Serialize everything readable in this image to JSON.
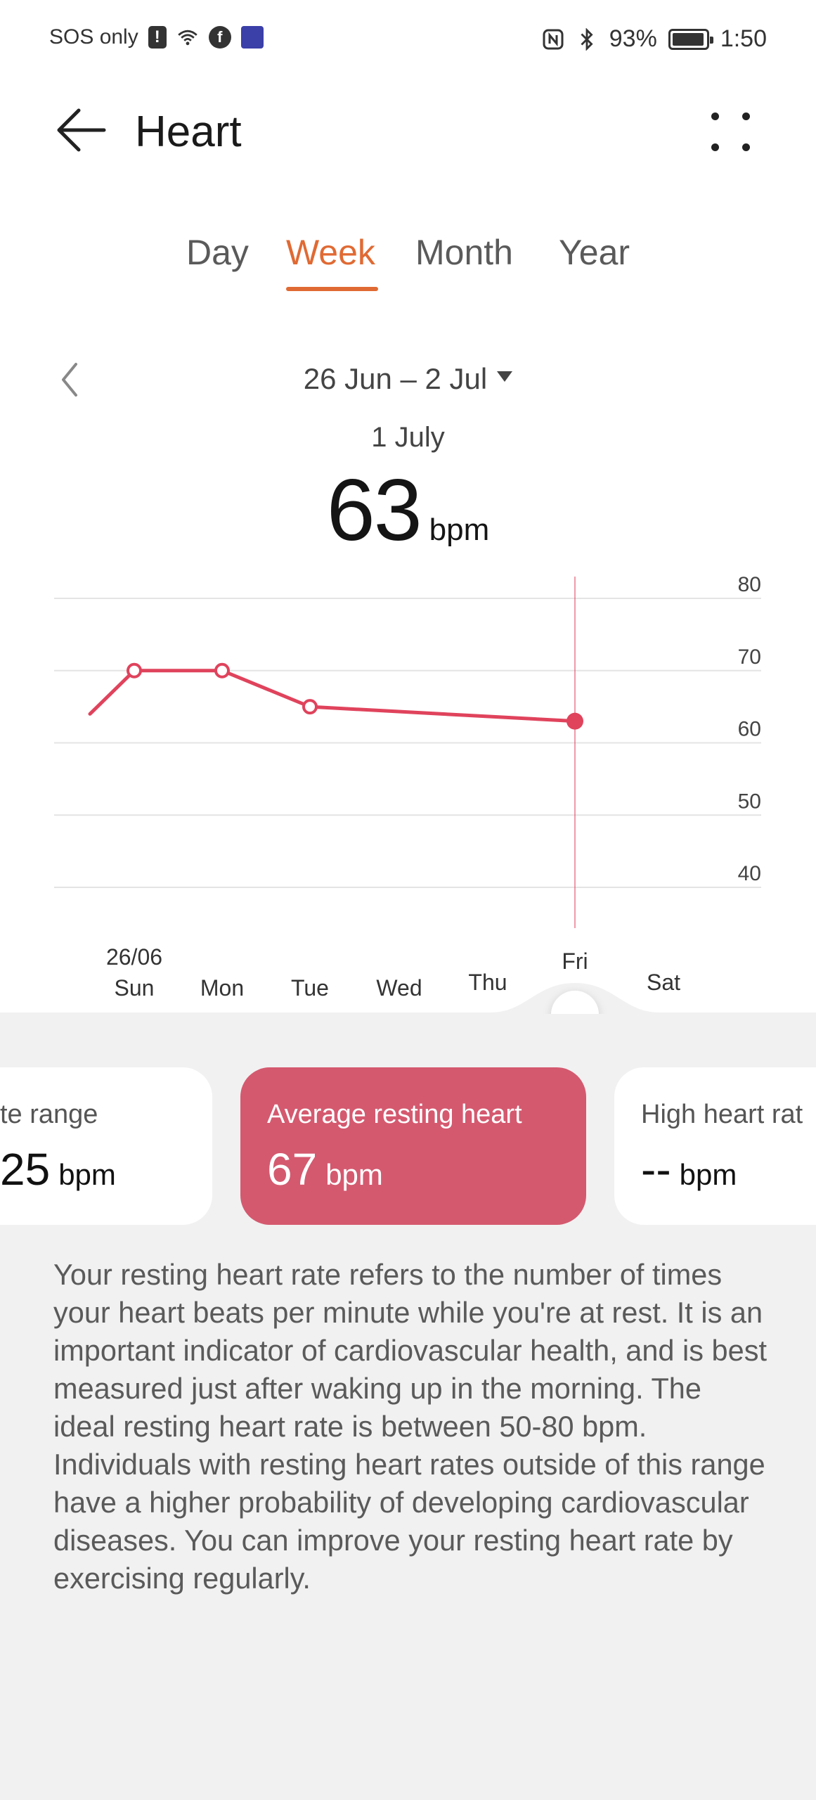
{
  "status_bar": {
    "carrier": "SOS only",
    "battery": "93%",
    "time": "1:50"
  },
  "header": {
    "title": "Heart"
  },
  "tabs": [
    {
      "label": "Day",
      "active": false
    },
    {
      "label": "Week",
      "active": true
    },
    {
      "label": "Month",
      "active": false
    },
    {
      "label": "Year",
      "active": false
    }
  ],
  "period": {
    "range": "26 Jun – 2 Jul",
    "selected_date": "1 July",
    "value": "63",
    "unit": "bpm"
  },
  "chart_data": {
    "type": "line",
    "categories": [
      "Sun",
      "Mon",
      "Tue",
      "Wed",
      "Thu",
      "Fri",
      "Sat"
    ],
    "first_date_label": "26/06",
    "y_ticks": [
      80,
      70,
      60,
      50,
      40
    ],
    "ylim": [
      40,
      80
    ],
    "series": [
      {
        "points": [
          {
            "x": "Sat (prev week)",
            "y": 64
          },
          {
            "x": "Sun",
            "y": 70
          },
          {
            "x": "Mon",
            "y": 70
          },
          {
            "x": "Tue",
            "y": 65
          },
          {
            "x": "Fri",
            "y": 63
          }
        ]
      }
    ],
    "selected": "Fri",
    "line_color": "#e0435c",
    "grid": true
  },
  "cards": [
    {
      "label": "te range",
      "value": "25",
      "unit": "bpm",
      "active": false
    },
    {
      "label": "Average resting heart",
      "value": "67",
      "unit": "bpm",
      "active": true
    },
    {
      "label": "High heart rat",
      "value": "--",
      "unit": "bpm",
      "active": false
    }
  ],
  "description": "Your resting heart rate refers to the number of times your heart beats per minute while you're at rest. It is an important indicator of cardiovascular health, and is best measured just after waking up in the morning. The ideal resting heart rate is between 50-80 bpm. Individuals with resting heart rates outside of this range have a higher probability of developing cardiovascular diseases. You can improve your resting heart rate by exercising regularly."
}
